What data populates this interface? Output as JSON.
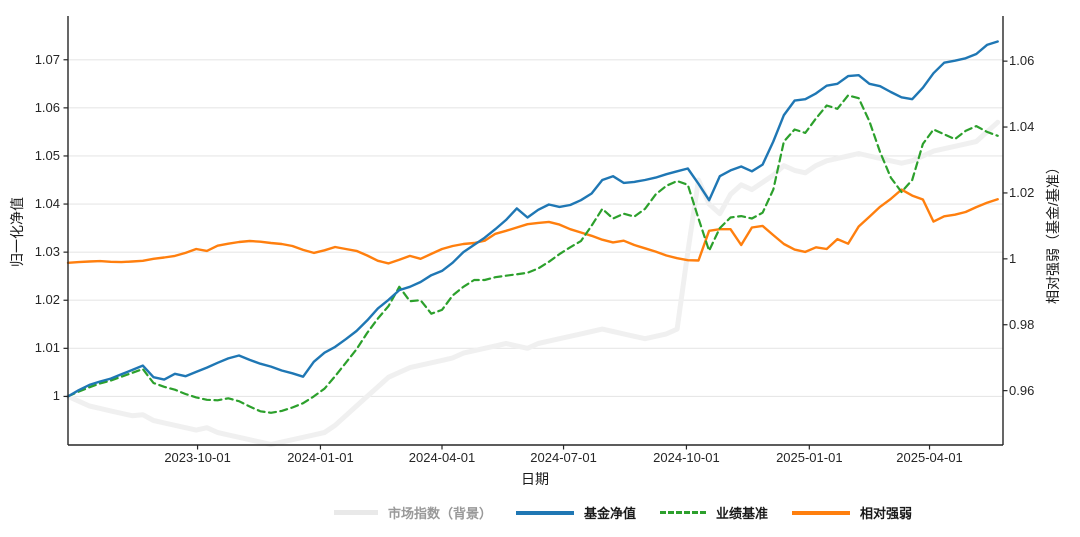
{
  "chart_data": {
    "type": "line",
    "title": "",
    "xlabel": "日期",
    "ylabel_left": "归一化净值",
    "ylabel_right": "相对强弱（基金/基准）",
    "grid": "horizontal",
    "legend_position": "bottom-center",
    "x_domain": [
      "2023-06-26",
      "2025-05-26"
    ],
    "x_ticks": [
      {
        "date": "2023-10-01",
        "label": "2023-10-01"
      },
      {
        "date": "2024-01-01",
        "label": "2024-01-01"
      },
      {
        "date": "2024-04-01",
        "label": "2024-04-01"
      },
      {
        "date": "2024-07-01",
        "label": "2024-07-01"
      },
      {
        "date": "2024-10-01",
        "label": "2024-10-01"
      },
      {
        "date": "2025-01-01",
        "label": "2025-01-01"
      },
      {
        "date": "2025-04-01",
        "label": "2025-04-01"
      }
    ],
    "left_axis": {
      "label": "归一化净值",
      "range": [
        0.9899,
        1.0791
      ],
      "ticks": [
        {
          "v": 1.0,
          "label": "1"
        },
        {
          "v": 1.01,
          "label": "1.01"
        },
        {
          "v": 1.02,
          "label": "1.02"
        },
        {
          "v": 1.03,
          "label": "1.03"
        },
        {
          "v": 1.04,
          "label": "1.04"
        },
        {
          "v": 1.05,
          "label": "1.05"
        },
        {
          "v": 1.06,
          "label": "1.06"
        },
        {
          "v": 1.07,
          "label": "1.07"
        }
      ]
    },
    "right_axis": {
      "label": "相对强弱（基金/基准）",
      "range": [
        0.9435,
        1.0737
      ],
      "ticks": [
        {
          "v": 0.96,
          "label": "0.96"
        },
        {
          "v": 0.98,
          "label": "0.98"
        },
        {
          "v": 1.0,
          "label": "1"
        },
        {
          "v": 1.02,
          "label": "1.02"
        },
        {
          "v": 1.04,
          "label": "1.04"
        },
        {
          "v": 1.06,
          "label": "1.06"
        }
      ]
    },
    "dates": [
      "2023-06-26",
      "2023-07-04",
      "2023-07-12",
      "2023-07-20",
      "2023-07-28",
      "2023-08-05",
      "2023-08-13",
      "2023-08-21",
      "2023-08-29",
      "2023-09-06",
      "2023-09-14",
      "2023-09-22",
      "2023-09-30",
      "2023-10-08",
      "2023-10-16",
      "2023-10-24",
      "2023-11-01",
      "2023-11-09",
      "2023-11-17",
      "2023-11-25",
      "2023-12-03",
      "2023-12-11",
      "2023-12-19",
      "2023-12-27",
      "2024-01-04",
      "2024-01-12",
      "2024-01-20",
      "2024-01-28",
      "2024-02-05",
      "2024-02-13",
      "2024-02-21",
      "2024-02-29",
      "2024-03-08",
      "2024-03-16",
      "2024-03-24",
      "2024-04-01",
      "2024-04-09",
      "2024-04-17",
      "2024-04-25",
      "2024-05-03",
      "2024-05-11",
      "2024-05-19",
      "2024-05-27",
      "2024-06-04",
      "2024-06-12",
      "2024-06-20",
      "2024-06-28",
      "2024-07-06",
      "2024-07-14",
      "2024-07-22",
      "2024-07-30",
      "2024-08-07",
      "2024-08-15",
      "2024-08-23",
      "2024-08-31",
      "2024-09-08",
      "2024-09-16",
      "2024-09-24",
      "2024-10-02",
      "2024-10-10",
      "2024-10-18",
      "2024-10-26",
      "2024-11-03",
      "2024-11-11",
      "2024-11-19",
      "2024-11-27",
      "2024-12-05",
      "2024-12-13",
      "2024-12-21",
      "2024-12-29",
      "2025-01-06",
      "2025-01-14",
      "2025-01-22",
      "2025-01-30",
      "2025-02-07",
      "2025-02-15",
      "2025-02-23",
      "2025-03-03",
      "2025-03-11",
      "2025-03-19",
      "2025-03-27",
      "2025-04-04",
      "2025-04-12",
      "2025-04-20",
      "2025-04-28",
      "2025-05-06",
      "2025-05-14",
      "2025-05-22"
    ],
    "series": [
      {
        "id": "market",
        "name": "市场指数（背景）",
        "axis": "left",
        "color": "#f0f0f0",
        "style": "solid",
        "width": 5,
        "values": [
          1.0,
          0.999,
          0.998,
          0.9975,
          0.997,
          0.9965,
          0.996,
          0.9962,
          0.995,
          0.9945,
          0.994,
          0.9935,
          0.993,
          0.9935,
          0.9925,
          0.992,
          0.9915,
          0.991,
          0.9905,
          0.99,
          0.9905,
          0.991,
          0.9915,
          0.992,
          0.9925,
          0.994,
          0.996,
          0.998,
          1.0,
          1.002,
          1.004,
          1.005,
          1.006,
          1.0065,
          1.007,
          1.0075,
          1.008,
          1.009,
          1.0095,
          1.01,
          1.0105,
          1.011,
          1.0105,
          1.01,
          1.011,
          1.0115,
          1.012,
          1.0125,
          1.013,
          1.0135,
          1.014,
          1.0135,
          1.013,
          1.0125,
          1.012,
          1.0125,
          1.013,
          1.014,
          1.03,
          1.045,
          1.04,
          1.038,
          1.042,
          1.044,
          1.043,
          1.0445,
          1.046,
          1.048,
          1.047,
          1.0465,
          1.048,
          1.049,
          1.0495,
          1.05,
          1.0505,
          1.05,
          1.0495,
          1.049,
          1.0485,
          1.049,
          1.05,
          1.051,
          1.0515,
          1.052,
          1.0525,
          1.053,
          1.055,
          1.057
        ]
      },
      {
        "id": "rs",
        "name": "相对强弱",
        "axis": "right",
        "color": "#ff7f0e",
        "style": "solid",
        "width": 2.4,
        "values": [
          0.9988,
          0.999,
          0.9992,
          0.9993,
          0.9991,
          0.999,
          0.9992,
          0.9994,
          1.0,
          1.0004,
          1.0009,
          1.0018,
          1.003,
          1.0024,
          1.004,
          1.0046,
          1.0051,
          1.0054,
          1.0052,
          1.0048,
          1.0045,
          1.0039,
          1.0027,
          1.0018,
          1.0026,
          1.0036,
          1.003,
          1.0024,
          1.001,
          0.9994,
          0.9986,
          0.9997,
          1.0009,
          1.0,
          1.0015,
          1.003,
          1.0039,
          1.0045,
          1.0048,
          1.0055,
          1.0076,
          1.0085,
          1.0095,
          1.0105,
          1.0109,
          1.0112,
          1.0104,
          1.009,
          1.008,
          1.007,
          1.0058,
          1.005,
          1.0055,
          1.0042,
          1.0032,
          1.0022,
          1.001,
          1.0002,
          0.9996,
          0.9995,
          1.0085,
          1.009,
          1.009,
          1.0042,
          1.0095,
          1.01,
          1.0072,
          1.0045,
          1.0028,
          1.0021,
          1.0035,
          1.003,
          1.006,
          1.0046,
          1.0098,
          1.0128,
          1.0158,
          1.0182,
          1.021,
          1.0192,
          1.018,
          1.0113,
          1.0129,
          1.0134,
          1.0142,
          1.0157,
          1.017,
          1.0181
        ]
      },
      {
        "id": "benchmark",
        "name": "业绩基准",
        "axis": "left",
        "color": "#2ca02c",
        "style": "dashed",
        "width": 2.2,
        "values": [
          1.0,
          1.001,
          1.0019,
          1.0027,
          1.0033,
          1.0041,
          1.0049,
          1.0057,
          1.0028,
          1.002,
          1.0014,
          1.0005,
          0.9998,
          0.9993,
          0.9992,
          0.9996,
          0.999,
          0.9979,
          0.9969,
          0.9966,
          0.997,
          0.9977,
          0.9986,
          1.0,
          1.0016,
          1.0042,
          1.007,
          1.0098,
          1.0132,
          1.0162,
          1.0188,
          1.0228,
          1.0198,
          1.02,
          1.0172,
          1.018,
          1.021,
          1.0228,
          1.0242,
          1.0242,
          1.0248,
          1.0251,
          1.0254,
          1.0257,
          1.0266,
          1.028,
          1.0296,
          1.031,
          1.0323,
          1.0355,
          1.039,
          1.037,
          1.038,
          1.0374,
          1.039,
          1.042,
          1.0438,
          1.0448,
          1.044,
          1.037,
          1.0303,
          1.035,
          1.0372,
          1.0375,
          1.037,
          1.0382,
          1.043,
          1.053,
          1.0555,
          1.0548,
          1.0578,
          1.0605,
          1.0598,
          1.0626,
          1.062,
          1.0572,
          1.0508,
          1.0455,
          1.0425,
          1.045,
          1.0525,
          1.0555,
          1.0545,
          1.0535,
          1.0552,
          1.0562,
          1.055,
          1.0542
        ]
      },
      {
        "id": "fund",
        "name": "基金净值",
        "axis": "left",
        "color": "#1f77b4",
        "style": "solid",
        "width": 2.4,
        "values": [
          1.0,
          1.0013,
          1.0024,
          1.0031,
          1.0037,
          1.0046,
          1.0055,
          1.0064,
          1.004,
          1.0035,
          1.0047,
          1.0042,
          1.0051,
          1.006,
          1.007,
          1.0079,
          1.0085,
          1.0076,
          1.0068,
          1.0062,
          1.0054,
          1.0048,
          1.0041,
          1.0072,
          1.0091,
          1.0103,
          1.0119,
          1.0136,
          1.0158,
          1.0183,
          1.0201,
          1.0221,
          1.0228,
          1.0238,
          1.0252,
          1.0261,
          1.0278,
          1.03,
          1.0315,
          1.033,
          1.0348,
          1.0367,
          1.0391,
          1.0372,
          1.0388,
          1.0399,
          1.0394,
          1.0398,
          1.0408,
          1.0422,
          1.045,
          1.0458,
          1.0444,
          1.0446,
          1.045,
          1.0455,
          1.0462,
          1.0468,
          1.0474,
          1.0442,
          1.0408,
          1.0458,
          1.047,
          1.0478,
          1.0468,
          1.0482,
          1.053,
          1.0585,
          1.0615,
          1.0618,
          1.063,
          1.0646,
          1.065,
          1.0666,
          1.0668,
          1.065,
          1.0645,
          1.0633,
          1.0622,
          1.0618,
          1.0642,
          1.0672,
          1.0694,
          1.0698,
          1.0703,
          1.0712,
          1.0731,
          1.0738
        ]
      }
    ],
    "legend": [
      {
        "label": "市场指数（背景）",
        "swatch_color": "#e9e9e9",
        "swatch_style": "solid",
        "label_color": "#999999"
      },
      {
        "label": "基金净值",
        "swatch_color": "#1f77b4",
        "swatch_style": "solid",
        "label_color": "#1a1a1a"
      },
      {
        "label": "业绩基准",
        "swatch_color": "#2ca02c",
        "swatch_style": "dashed",
        "label_color": "#1a1a1a"
      },
      {
        "label": "相对强弱",
        "swatch_color": "#ff7f0e",
        "swatch_style": "solid",
        "label_color": "#1a1a1a"
      }
    ],
    "colors": {
      "grid": "#e7e7e7",
      "spine": "#262626",
      "tick_text": "#262626",
      "background": "#ffffff"
    }
  }
}
